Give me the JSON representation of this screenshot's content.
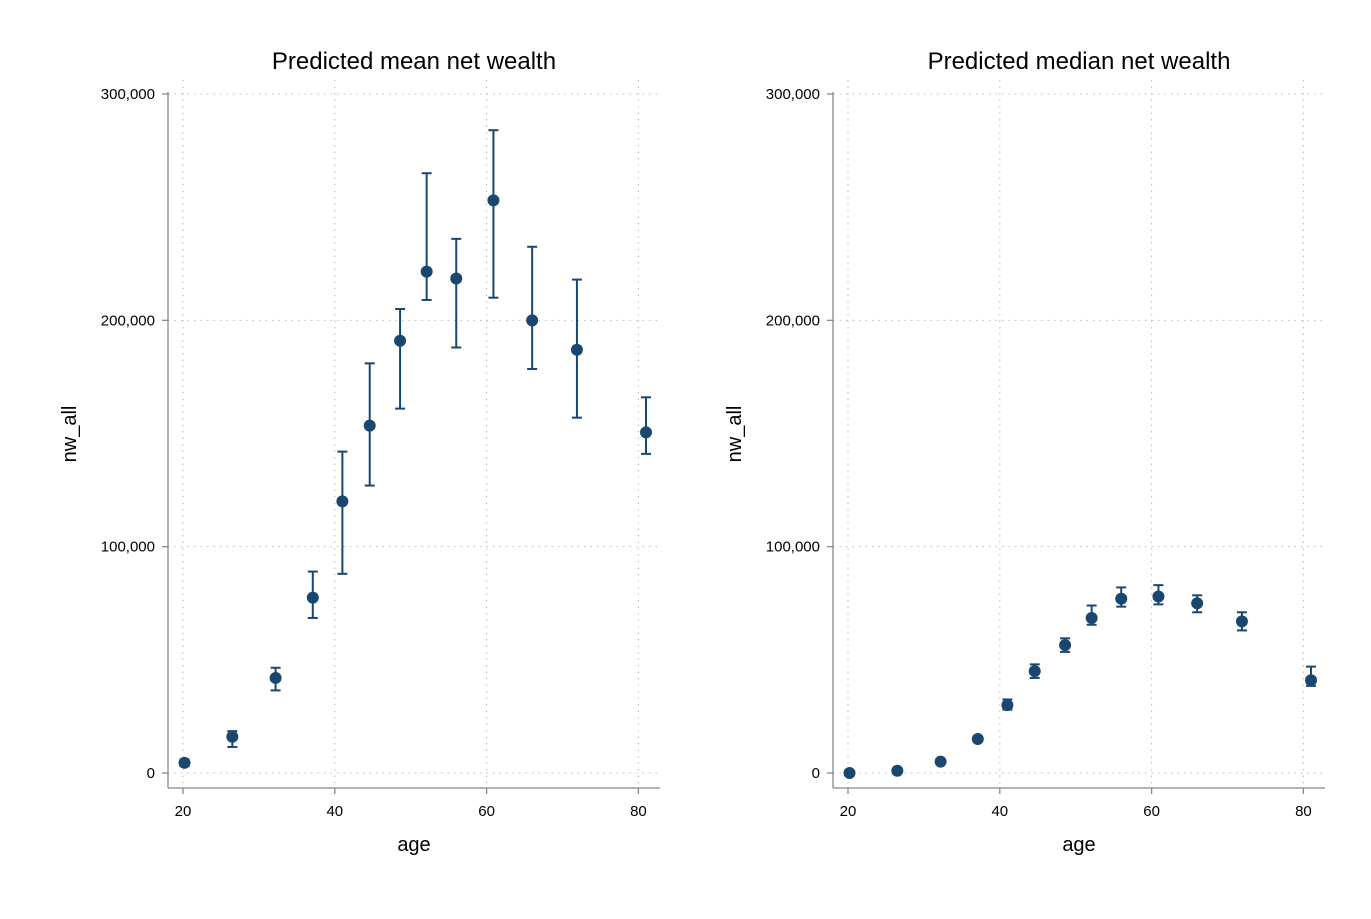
{
  "colors": {
    "marker": "#1a476f",
    "errorbar": "#1a476f",
    "axis": "#888888",
    "grid": "#bbbbbb",
    "background": "#ffffff"
  },
  "chart_data": [
    {
      "type": "scatter",
      "title": "Predicted mean net wealth",
      "xlabel": "age",
      "ylabel": "nw_all",
      "xlim": [
        20,
        81
      ],
      "ylim": [
        0,
        300000
      ],
      "xticks": [
        20,
        40,
        60,
        80
      ],
      "yticks": [
        0,
        100000,
        200000,
        300000
      ],
      "xtick_labels": [
        "20",
        "40",
        "60",
        "80"
      ],
      "ytick_labels": [
        "0",
        "100,000",
        "200,000",
        "300,000"
      ],
      "grid": true,
      "error_bars": true,
      "points": [
        {
          "x": 20.2,
          "y": 4500,
          "lo": 3000,
          "hi": 6000
        },
        {
          "x": 26.5,
          "y": 16000,
          "lo": 11500,
          "hi": 18500
        },
        {
          "x": 32.2,
          "y": 42000,
          "lo": 36500,
          "hi": 46500
        },
        {
          "x": 37.1,
          "y": 77500,
          "lo": 68500,
          "hi": 89000
        },
        {
          "x": 41.0,
          "y": 120000,
          "lo": 88000,
          "hi": 142000
        },
        {
          "x": 44.6,
          "y": 153500,
          "lo": 127000,
          "hi": 181000
        },
        {
          "x": 48.6,
          "y": 191000,
          "lo": 161000,
          "hi": 205000
        },
        {
          "x": 52.1,
          "y": 221500,
          "lo": 209000,
          "hi": 265000
        },
        {
          "x": 56.0,
          "y": 218500,
          "lo": 188000,
          "hi": 236000
        },
        {
          "x": 60.9,
          "y": 253000,
          "lo": 210000,
          "hi": 284000
        },
        {
          "x": 66.0,
          "y": 200000,
          "lo": 178500,
          "hi": 232500
        },
        {
          "x": 71.9,
          "y": 187000,
          "lo": 157000,
          "hi": 218000
        },
        {
          "x": 81.0,
          "y": 150500,
          "lo": 141000,
          "hi": 166000
        }
      ]
    },
    {
      "type": "scatter",
      "title": "Predicted median net wealth",
      "xlabel": "age",
      "ylabel": "nw_all",
      "xlim": [
        20,
        81
      ],
      "ylim": [
        0,
        300000
      ],
      "xticks": [
        20,
        40,
        60,
        80
      ],
      "yticks": [
        0,
        100000,
        200000,
        300000
      ],
      "xtick_labels": [
        "20",
        "40",
        "60",
        "80"
      ],
      "ytick_labels": [
        "0",
        "100,000",
        "200,000",
        "300,000"
      ],
      "grid": true,
      "error_bars": true,
      "points": [
        {
          "x": 20.2,
          "y": 0,
          "lo": 0,
          "hi": 0
        },
        {
          "x": 26.5,
          "y": 1000,
          "lo": 500,
          "hi": 1500
        },
        {
          "x": 32.2,
          "y": 5000,
          "lo": 4000,
          "hi": 6000
        },
        {
          "x": 37.1,
          "y": 15000,
          "lo": 14000,
          "hi": 16000
        },
        {
          "x": 41.0,
          "y": 30000,
          "lo": 28000,
          "hi": 32500
        },
        {
          "x": 44.6,
          "y": 45000,
          "lo": 42000,
          "hi": 48000
        },
        {
          "x": 48.6,
          "y": 56500,
          "lo": 53500,
          "hi": 59500
        },
        {
          "x": 52.1,
          "y": 68500,
          "lo": 65500,
          "hi": 74000
        },
        {
          "x": 56.0,
          "y": 77000,
          "lo": 73500,
          "hi": 82000
        },
        {
          "x": 60.9,
          "y": 78000,
          "lo": 74500,
          "hi": 83000
        },
        {
          "x": 66.0,
          "y": 75000,
          "lo": 71000,
          "hi": 78500
        },
        {
          "x": 71.9,
          "y": 67000,
          "lo": 63000,
          "hi": 71000
        },
        {
          "x": 81.0,
          "y": 41000,
          "lo": 38500,
          "hi": 47000
        }
      ]
    }
  ]
}
